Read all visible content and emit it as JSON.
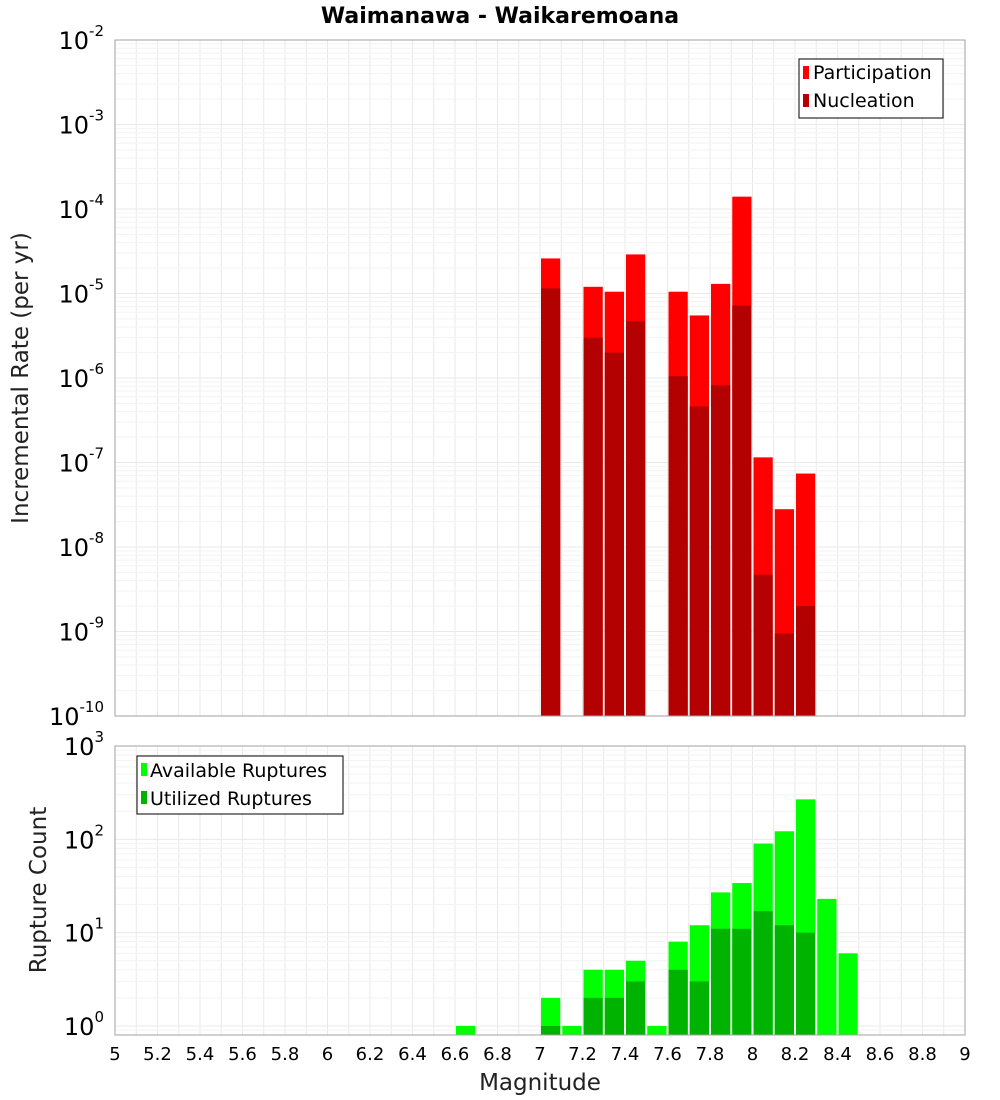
{
  "chart_data": [
    {
      "type": "bar",
      "title": "Waimanawa - Waikaremoana",
      "ylabel": "Incremental Rate (per yr)",
      "xlabel": "",
      "yscale": "log",
      "ylim": [
        1e-10,
        0.01
      ],
      "xlim": [
        5,
        9
      ],
      "y_ticks": [
        {
          "base": "10",
          "exp": "-10"
        },
        {
          "base": "10",
          "exp": "-9"
        },
        {
          "base": "10",
          "exp": "-8"
        },
        {
          "base": "10",
          "exp": "-7"
        },
        {
          "base": "10",
          "exp": "-6"
        },
        {
          "base": "10",
          "exp": "-5"
        },
        {
          "base": "10",
          "exp": "-4"
        },
        {
          "base": "10",
          "exp": "-3"
        },
        {
          "base": "10",
          "exp": "-2"
        }
      ],
      "legend": {
        "placement": "top-right",
        "entries": [
          {
            "name": "Participation",
            "color": "#ff0000"
          },
          {
            "name": "Nucleation",
            "color": "#b30000"
          }
        ]
      },
      "series": [
        {
          "name": "Participation",
          "color": "#ff0000",
          "points": [
            {
              "x": 7.05,
              "y": 2.6e-05
            },
            {
              "x": 7.25,
              "y": 1.2e-05
            },
            {
              "x": 7.35,
              "y": 1.05e-05
            },
            {
              "x": 7.45,
              "y": 2.9e-05
            },
            {
              "x": 7.65,
              "y": 1.05e-05
            },
            {
              "x": 7.75,
              "y": 5.5e-06
            },
            {
              "x": 7.85,
              "y": 1.3e-05
            },
            {
              "x": 7.95,
              "y": 0.00014
            },
            {
              "x": 8.05,
              "y": 1.15e-07
            },
            {
              "x": 8.15,
              "y": 2.8e-08
            },
            {
              "x": 8.25,
              "y": 7.4e-08
            }
          ]
        },
        {
          "name": "Nucleation",
          "color": "#b30000",
          "points": [
            {
              "x": 7.05,
              "y": 1.15e-05
            },
            {
              "x": 7.25,
              "y": 3e-06
            },
            {
              "x": 7.35,
              "y": 2e-06
            },
            {
              "x": 7.45,
              "y": 4.7e-06
            },
            {
              "x": 7.65,
              "y": 1.05e-06
            },
            {
              "x": 7.75,
              "y": 4.6e-07
            },
            {
              "x": 7.85,
              "y": 8.2e-07
            },
            {
              "x": 7.95,
              "y": 7.2e-06
            },
            {
              "x": 8.05,
              "y": 4.7e-09
            },
            {
              "x": 8.15,
              "y": 9.5e-10
            },
            {
              "x": 8.25,
              "y": 2e-09
            }
          ]
        }
      ]
    },
    {
      "type": "bar",
      "title": "",
      "ylabel": "Rupture Count",
      "xlabel": "Magnitude",
      "yscale": "log",
      "ylim": [
        0.8,
        1000
      ],
      "xlim": [
        5,
        9
      ],
      "x_ticks": [
        "5",
        "5.2",
        "5.4",
        "5.6",
        "5.8",
        "6",
        "6.2",
        "6.4",
        "6.6",
        "6.8",
        "7",
        "7.2",
        "7.4",
        "7.6",
        "7.8",
        "8",
        "8.2",
        "8.4",
        "8.6",
        "8.8",
        "9"
      ],
      "y_ticks": [
        {
          "base": "10",
          "exp": "0"
        },
        {
          "base": "10",
          "exp": "1"
        },
        {
          "base": "10",
          "exp": "2"
        },
        {
          "base": "10",
          "exp": "3"
        }
      ],
      "legend": {
        "placement": "top-left",
        "entries": [
          {
            "name": "Available Ruptures",
            "color": "#00ff00"
          },
          {
            "name": "Utilized Ruptures",
            "color": "#00b300"
          }
        ]
      },
      "series": [
        {
          "name": "Available Ruptures",
          "color": "#00ff00",
          "points": [
            {
              "x": 6.65,
              "y": 1
            },
            {
              "x": 7.05,
              "y": 2
            },
            {
              "x": 7.15,
              "y": 1
            },
            {
              "x": 7.25,
              "y": 4
            },
            {
              "x": 7.35,
              "y": 4
            },
            {
              "x": 7.45,
              "y": 5
            },
            {
              "x": 7.55,
              "y": 1
            },
            {
              "x": 7.65,
              "y": 8
            },
            {
              "x": 7.75,
              "y": 12
            },
            {
              "x": 7.85,
              "y": 27
            },
            {
              "x": 7.95,
              "y": 34
            },
            {
              "x": 8.05,
              "y": 90
            },
            {
              "x": 8.15,
              "y": 122
            },
            {
              "x": 8.25,
              "y": 268
            },
            {
              "x": 8.35,
              "y": 23
            },
            {
              "x": 8.45,
              "y": 6
            }
          ]
        },
        {
          "name": "Utilized Ruptures",
          "color": "#00b300",
          "points": [
            {
              "x": 7.05,
              "y": 1
            },
            {
              "x": 7.25,
              "y": 2
            },
            {
              "x": 7.35,
              "y": 2
            },
            {
              "x": 7.45,
              "y": 3
            },
            {
              "x": 7.65,
              "y": 4
            },
            {
              "x": 7.75,
              "y": 3
            },
            {
              "x": 7.85,
              "y": 11
            },
            {
              "x": 7.95,
              "y": 11
            },
            {
              "x": 8.05,
              "y": 17
            },
            {
              "x": 8.15,
              "y": 12
            },
            {
              "x": 8.25,
              "y": 10
            }
          ]
        }
      ]
    }
  ]
}
